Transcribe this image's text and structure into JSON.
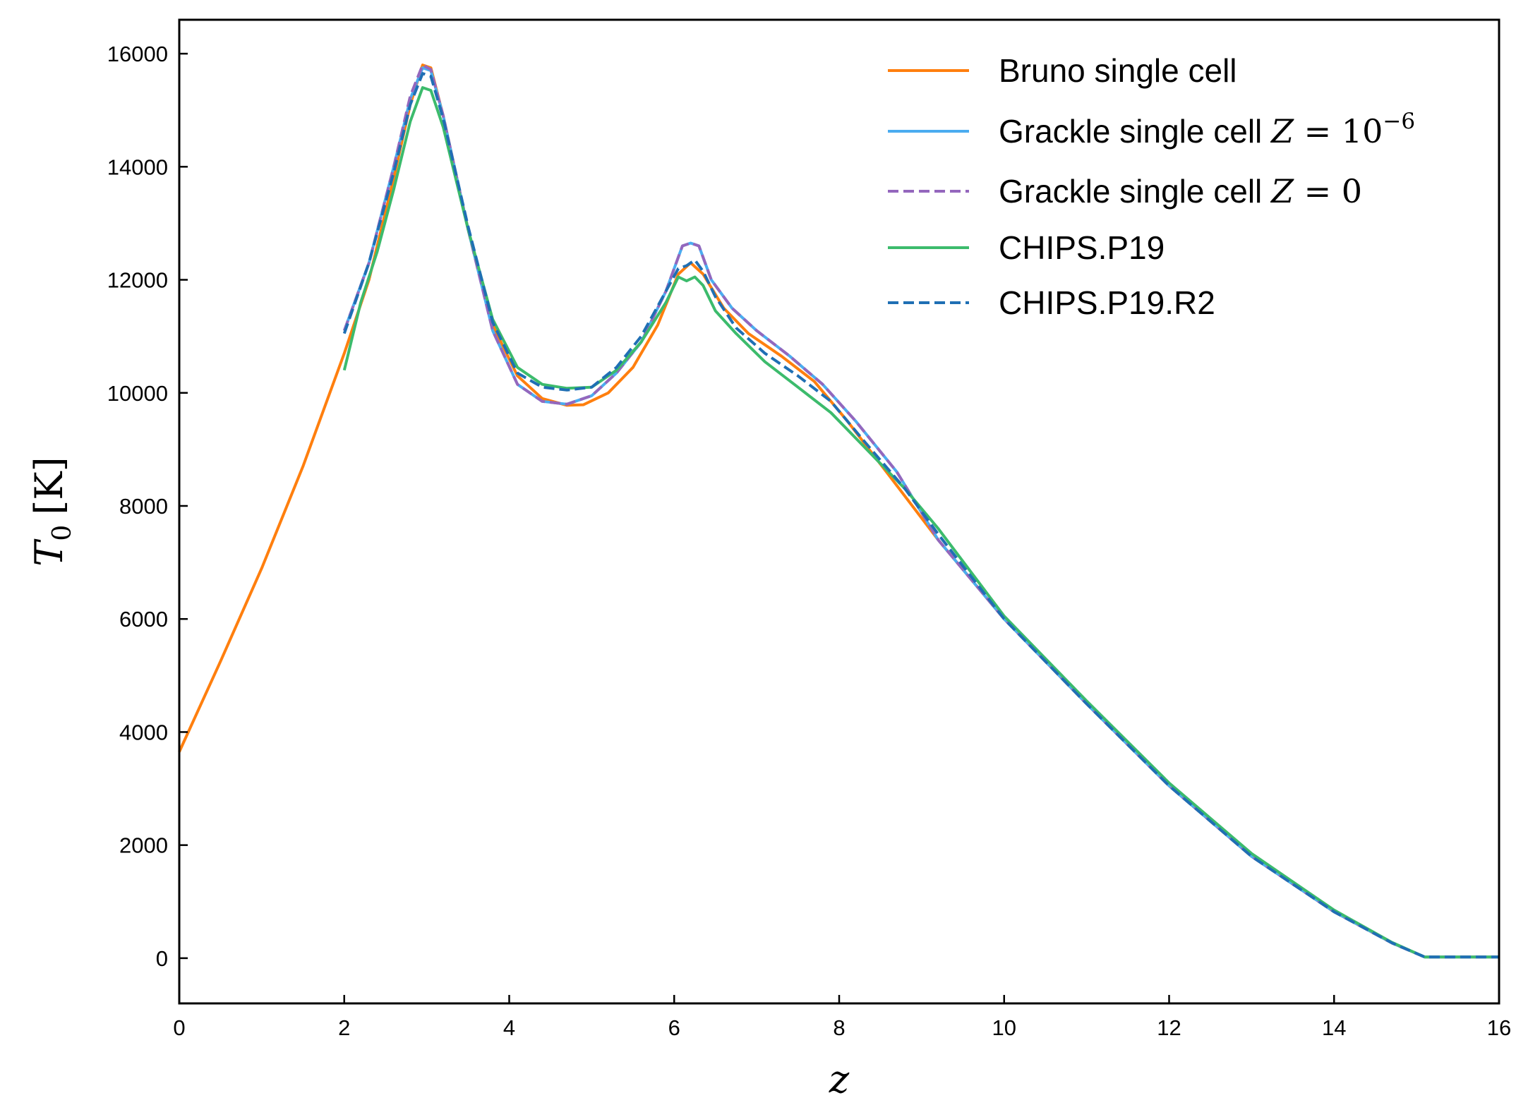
{
  "chart_data": {
    "type": "line",
    "xlabel": "z",
    "ylabel": "T0 [K]",
    "xlim": [
      0,
      16
    ],
    "ylim": [
      -800,
      16600
    ],
    "x_ticks": [
      0,
      2,
      4,
      6,
      8,
      10,
      12,
      14,
      16
    ],
    "y_ticks": [
      0,
      2000,
      4000,
      6000,
      8000,
      10000,
      12000,
      14000,
      16000
    ],
    "grid": false,
    "legend_position": "top-right",
    "series": [
      {
        "name": "Bruno single cell",
        "color": "#ff7f0e",
        "dash": "solid",
        "points": [
          [
            0,
            3650
          ],
          [
            0.5,
            5250
          ],
          [
            1,
            6900
          ],
          [
            1.5,
            8700
          ],
          [
            2,
            10700
          ],
          [
            2.3,
            12000
          ],
          [
            2.6,
            13800
          ],
          [
            2.8,
            15100
          ],
          [
            2.95,
            15800
          ],
          [
            3.05,
            15750
          ],
          [
            3.2,
            14900
          ],
          [
            3.5,
            12900
          ],
          [
            3.8,
            11200
          ],
          [
            4.1,
            10300
          ],
          [
            4.4,
            9900
          ],
          [
            4.7,
            9780
          ],
          [
            4.9,
            9790
          ],
          [
            5.2,
            10000
          ],
          [
            5.5,
            10450
          ],
          [
            5.8,
            11200
          ],
          [
            6.05,
            12100
          ],
          [
            6.2,
            12300
          ],
          [
            6.35,
            12100
          ],
          [
            6.6,
            11500
          ],
          [
            6.9,
            11050
          ],
          [
            7.3,
            10650
          ],
          [
            7.7,
            10200
          ],
          [
            8.1,
            9500
          ],
          [
            8.6,
            8550
          ],
          [
            9.2,
            7400
          ],
          [
            10,
            6000
          ],
          [
            11,
            4500
          ],
          [
            12,
            3050
          ],
          [
            13,
            1800
          ],
          [
            14,
            820
          ],
          [
            14.7,
            270
          ],
          [
            15.1,
            20
          ],
          [
            16,
            20
          ]
        ]
      },
      {
        "name": "Grackle single cell Z = 10^-6",
        "color": "#4bacf0",
        "dash": "solid",
        "points": [
          [
            2,
            11100
          ],
          [
            2.3,
            12300
          ],
          [
            2.6,
            14000
          ],
          [
            2.8,
            15200
          ],
          [
            2.95,
            15750
          ],
          [
            3.05,
            15700
          ],
          [
            3.2,
            14900
          ],
          [
            3.5,
            12900
          ],
          [
            3.8,
            11100
          ],
          [
            4.1,
            10150
          ],
          [
            4.4,
            9850
          ],
          [
            4.7,
            9800
          ],
          [
            5,
            9950
          ],
          [
            5.3,
            10350
          ],
          [
            5.6,
            10900
          ],
          [
            5.9,
            11800
          ],
          [
            6.1,
            12600
          ],
          [
            6.2,
            12650
          ],
          [
            6.3,
            12600
          ],
          [
            6.45,
            12000
          ],
          [
            6.7,
            11500
          ],
          [
            7,
            11100
          ],
          [
            7.4,
            10650
          ],
          [
            7.8,
            10150
          ],
          [
            8.2,
            9500
          ],
          [
            8.7,
            8600
          ],
          [
            9.2,
            7400
          ],
          [
            10,
            6000
          ],
          [
            11,
            4500
          ],
          [
            12,
            3050
          ],
          [
            13,
            1800
          ],
          [
            14,
            820
          ],
          [
            14.7,
            270
          ],
          [
            15.1,
            20
          ],
          [
            16,
            20
          ]
        ]
      },
      {
        "name": "Grackle single cell Z = 0",
        "color": "#9467bd",
        "dash": "dashed",
        "points": [
          [
            2,
            11100
          ],
          [
            2.3,
            12300
          ],
          [
            2.6,
            14000
          ],
          [
            2.8,
            15250
          ],
          [
            2.95,
            15800
          ],
          [
            3.05,
            15720
          ],
          [
            3.2,
            14900
          ],
          [
            3.5,
            12900
          ],
          [
            3.8,
            11100
          ],
          [
            4.1,
            10150
          ],
          [
            4.4,
            9850
          ],
          [
            4.7,
            9800
          ],
          [
            5,
            9950
          ],
          [
            5.3,
            10350
          ],
          [
            5.6,
            10900
          ],
          [
            5.9,
            11800
          ],
          [
            6.1,
            12600
          ],
          [
            6.2,
            12650
          ],
          [
            6.3,
            12600
          ],
          [
            6.45,
            12000
          ],
          [
            6.7,
            11500
          ],
          [
            7,
            11100
          ],
          [
            7.4,
            10650
          ],
          [
            7.8,
            10150
          ],
          [
            8.2,
            9500
          ],
          [
            8.7,
            8600
          ],
          [
            9.2,
            7400
          ],
          [
            10,
            6000
          ],
          [
            11,
            4500
          ],
          [
            12,
            3050
          ],
          [
            13,
            1800
          ],
          [
            14,
            820
          ],
          [
            14.7,
            270
          ],
          [
            15.1,
            20
          ],
          [
            16,
            20
          ]
        ]
      },
      {
        "name": "CHIPS.P19",
        "color": "#3cbb6c",
        "dash": "solid",
        "points": [
          [
            2,
            10400
          ],
          [
            2.2,
            11600
          ],
          [
            2.4,
            12500
          ],
          [
            2.6,
            13600
          ],
          [
            2.8,
            14800
          ],
          [
            2.95,
            15400
          ],
          [
            3.05,
            15350
          ],
          [
            3.2,
            14700
          ],
          [
            3.5,
            12900
          ],
          [
            3.8,
            11300
          ],
          [
            4.1,
            10450
          ],
          [
            4.4,
            10150
          ],
          [
            4.7,
            10080
          ],
          [
            5,
            10100
          ],
          [
            5.3,
            10400
          ],
          [
            5.6,
            10900
          ],
          [
            5.9,
            11600
          ],
          [
            6.05,
            12050
          ],
          [
            6.15,
            11980
          ],
          [
            6.25,
            12050
          ],
          [
            6.35,
            11900
          ],
          [
            6.5,
            11450
          ],
          [
            6.75,
            11050
          ],
          [
            7.1,
            10550
          ],
          [
            7.5,
            10100
          ],
          [
            7.9,
            9650
          ],
          [
            8.3,
            9050
          ],
          [
            8.8,
            8300
          ],
          [
            9.2,
            7600
          ],
          [
            10,
            6050
          ],
          [
            11,
            4550
          ],
          [
            12,
            3100
          ],
          [
            13,
            1850
          ],
          [
            14,
            850
          ],
          [
            14.7,
            280
          ],
          [
            15.1,
            20
          ],
          [
            16,
            20
          ]
        ]
      },
      {
        "name": "CHIPS.P19.R2",
        "color": "#1f6fb4",
        "dash": "dashed",
        "points": [
          [
            2,
            11050
          ],
          [
            2.3,
            12300
          ],
          [
            2.6,
            13900
          ],
          [
            2.8,
            15100
          ],
          [
            2.95,
            15650
          ],
          [
            3.05,
            15600
          ],
          [
            3.2,
            14850
          ],
          [
            3.5,
            12950
          ],
          [
            3.8,
            11250
          ],
          [
            4.1,
            10350
          ],
          [
            4.4,
            10100
          ],
          [
            4.7,
            10050
          ],
          [
            5,
            10100
          ],
          [
            5.3,
            10450
          ],
          [
            5.6,
            11000
          ],
          [
            5.9,
            11800
          ],
          [
            6.05,
            12200
          ],
          [
            6.15,
            12250
          ],
          [
            6.25,
            12350
          ],
          [
            6.35,
            12150
          ],
          [
            6.5,
            11700
          ],
          [
            6.75,
            11150
          ],
          [
            7.1,
            10700
          ],
          [
            7.5,
            10300
          ],
          [
            7.9,
            9850
          ],
          [
            8.3,
            9150
          ],
          [
            8.8,
            8300
          ],
          [
            9.2,
            7500
          ],
          [
            10,
            6000
          ],
          [
            11,
            4500
          ],
          [
            12,
            3050
          ],
          [
            13,
            1800
          ],
          [
            14,
            820
          ],
          [
            14.7,
            270
          ],
          [
            15.1,
            20
          ],
          [
            16,
            20
          ]
        ]
      }
    ]
  }
}
